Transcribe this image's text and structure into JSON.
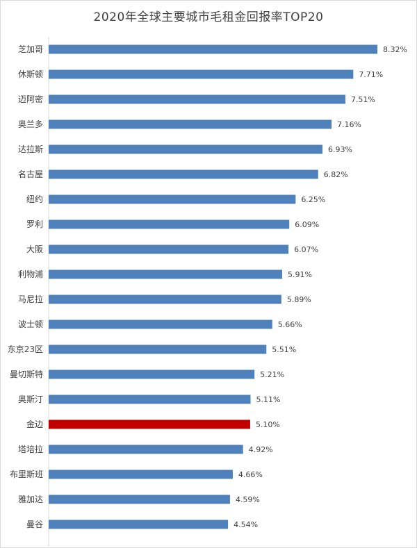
{
  "chart_data": {
    "type": "bar",
    "orientation": "horizontal",
    "title": "2020年全球主要城市毛租金回报率TOP20",
    "categories": [
      "芝加哥",
      "休斯顿",
      "迈阿密",
      "奥兰多",
      "达拉斯",
      "名古屋",
      "纽约",
      "罗利",
      "大阪",
      "利物浦",
      "马尼拉",
      "波士顿",
      "东京23区",
      "曼切斯特",
      "奥斯汀",
      "金边",
      "塔培拉",
      "布里斯班",
      "雅加达",
      "曼谷"
    ],
    "values": [
      8.32,
      7.71,
      7.51,
      7.16,
      6.93,
      6.82,
      6.25,
      6.09,
      6.07,
      5.91,
      5.89,
      5.66,
      5.51,
      5.21,
      5.11,
      5.1,
      4.92,
      4.66,
      4.59,
      4.54
    ],
    "labels": [
      "8.32%",
      "7.71%",
      "7.51%",
      "7.16%",
      "6.93%",
      "6.82%",
      "6.25%",
      "6.09%",
      "6.07%",
      "5.91%",
      "5.89%",
      "5.66%",
      "5.51%",
      "5.21%",
      "5.11%",
      "5.10%",
      "4.92%",
      "4.66%",
      "4.59%",
      "4.54%"
    ],
    "xlim": [
      0,
      8.32
    ],
    "grid": false,
    "legend": "none",
    "bar_color": "#4f81bd",
    "highlight_category": "金边",
    "highlight_color": "#c00000"
  }
}
